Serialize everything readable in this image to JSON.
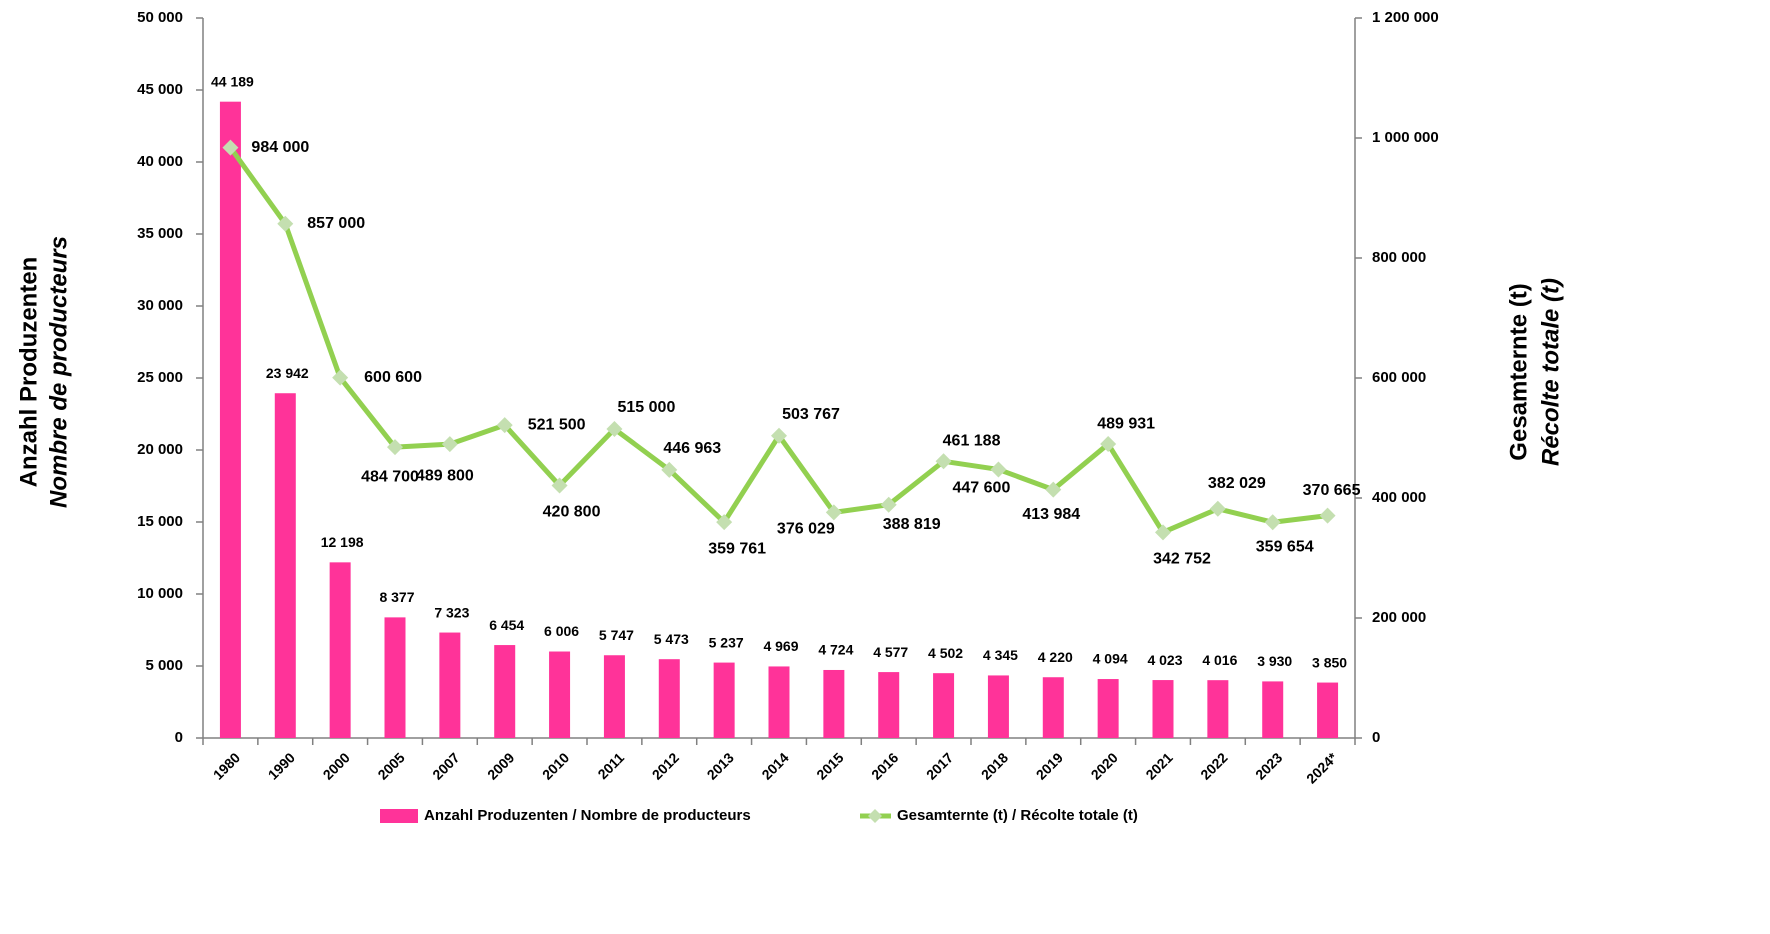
{
  "chart_data": {
    "type": "combo",
    "ylabel": [
      "Anzahl Produzenten",
      "Nombre de producteurs"
    ],
    "y2label": [
      "Gesamternte (t)",
      "Récolte totale (t)"
    ],
    "categories": [
      "1980",
      "1990",
      "2000",
      "2005",
      "2007",
      "2009",
      "2010",
      "2011",
      "2012",
      "2013",
      "2014",
      "2015",
      "2016",
      "2017",
      "2018",
      "2019",
      "2020",
      "2021",
      "2022",
      "2023",
      "2024*"
    ],
    "series": [
      {
        "name": "Anzahl Produzenten / Nombre de producteurs",
        "type": "bar",
        "color": "#ff3399",
        "values": [
          44189,
          23942,
          12198,
          8377,
          7323,
          6454,
          6006,
          5747,
          5473,
          5237,
          4969,
          4724,
          4577,
          4502,
          4345,
          4220,
          4094,
          4023,
          4016,
          3930,
          3850
        ],
        "value_labels": [
          "44 189",
          "23 942",
          "12 198",
          "8 377",
          "7 323",
          "6 454",
          "6 006",
          "5 747",
          "5 473",
          "5 237",
          "4 969",
          "4 724",
          "4 577",
          "4 502",
          "4 345",
          "4 220",
          "4 094",
          "4 023",
          "4 016",
          "3 930",
          "3 850"
        ]
      },
      {
        "name": "Gesamternte (t) / Récolte totale (t)",
        "type": "line",
        "axis": "y2",
        "color": "#92d050",
        "marker_color": "#c4dfb0",
        "values": [
          984000,
          857000,
          600600,
          484700,
          489800,
          521500,
          420800,
          515000,
          446963,
          359761,
          503767,
          376029,
          388819,
          461188,
          447600,
          413984,
          489931,
          342752,
          382029,
          359654,
          370665
        ],
        "value_labels": [
          "984 000",
          "857 000",
          "600 600",
          "484 700",
          "489 800",
          "521 500",
          "420 800",
          "515 000",
          "446 963",
          "359 761",
          "503 767",
          "376 029",
          "388 819",
          "461 188",
          "447 600",
          "413 984",
          "489 931",
          "342 752",
          "382 029",
          "359 654",
          "370 665"
        ]
      }
    ],
    "ylim": [
      0,
      50000
    ],
    "yticks": [
      0,
      {
        "value": 5000,
        "label": "5 000"
      },
      {
        "value": 10000,
        "label": "10 000"
      },
      {
        "value": 15000,
        "label": "15 000"
      },
      {
        "value": 20000,
        "label": "20 000"
      },
      {
        "value": 25000,
        "label": "25 000"
      },
      {
        "value": 30000,
        "label": "30 000"
      },
      {
        "value": 35000,
        "label": "35 000"
      },
      {
        "value": 40000,
        "label": "40 000"
      },
      {
        "value": 45000,
        "label": "45 000"
      },
      {
        "value": 50000,
        "label": "50 000"
      }
    ],
    "y2lim": [
      0,
      1200000
    ],
    "y2ticks": [
      0,
      {
        "value": 200000,
        "label": "200 000"
      },
      {
        "value": 400000,
        "label": "400 000"
      },
      {
        "value": 600000,
        "label": "600 000"
      },
      {
        "value": 800000,
        "label": "800 000"
      },
      {
        "value": 1000000,
        "label": "1 000 000"
      },
      {
        "value": 1200000,
        "label": "1 200 000"
      }
    ],
    "legend": "bottom"
  }
}
